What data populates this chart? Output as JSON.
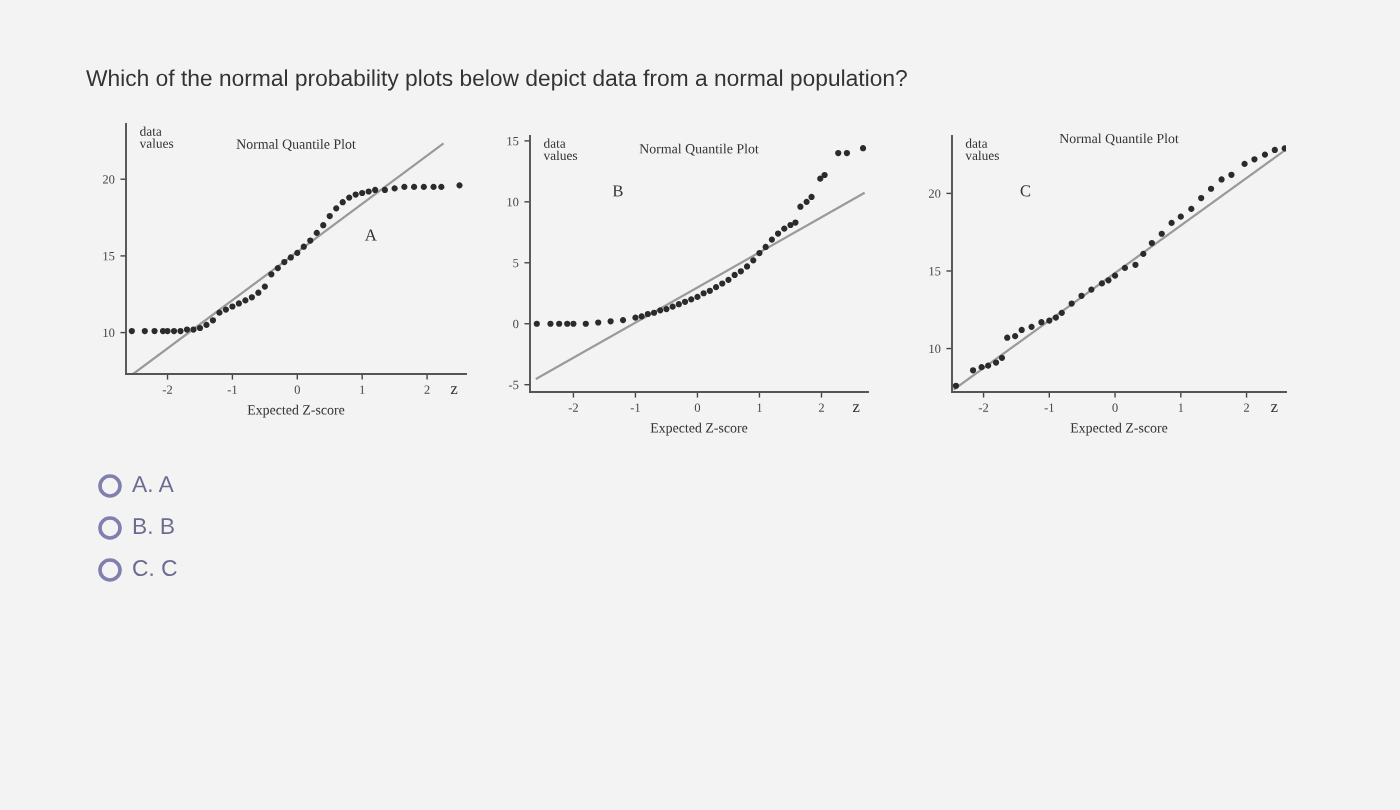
{
  "chart_data": [
    {
      "type": "other",
      "title": "Which of the normal probability plots below depict data from a normal population?"
    },
    {
      "type": "scatter",
      "title": "Normal Quantile Plot",
      "xlabel": "Expected Z-score",
      "ylabel": "data values",
      "annotations": [
        "A",
        "z"
      ],
      "xlim": [
        -2.64,
        2.6
      ],
      "ylim": [
        7.3,
        23.6
      ],
      "xticks": [
        -2,
        -1,
        0,
        1,
        2
      ],
      "yticks": [
        10,
        15,
        20
      ],
      "series": [
        {
          "type": "scatter",
          "marker": "circle",
          "color": "#2b2b2b",
          "x": [
            -2.55,
            -2.35,
            -2.2,
            -2.07,
            -2.0,
            -1.9,
            -1.8,
            -1.7,
            -1.6,
            -1.5,
            -1.4,
            -1.3,
            -1.2,
            -1.1,
            -1.0,
            -0.9,
            -0.8,
            -0.7,
            -0.6,
            -0.5,
            -0.4,
            -0.3,
            -0.2,
            -0.1,
            0.0,
            0.1,
            0.2,
            0.3,
            0.4,
            0.5,
            0.6,
            0.7,
            0.8,
            0.9,
            1.0,
            1.1,
            1.2,
            1.35,
            1.5,
            1.65,
            1.8,
            1.95,
            2.1,
            2.22,
            2.5
          ],
          "values": [
            10.1,
            10.1,
            10.1,
            10.1,
            10.1,
            10.1,
            10.1,
            10.2,
            10.2,
            10.3,
            10.5,
            10.8,
            11.3,
            11.5,
            11.7,
            11.9,
            12.1,
            12.3,
            12.6,
            13.0,
            13.8,
            14.2,
            14.6,
            14.9,
            15.2,
            15.6,
            16.0,
            16.5,
            17.0,
            17.6,
            18.1,
            18.5,
            18.8,
            19.0,
            19.1,
            19.2,
            19.3,
            19.3,
            19.4,
            19.5,
            19.5,
            19.5,
            19.5,
            19.5,
            19.6
          ]
        },
        {
          "type": "line",
          "color": "#9a9a9a",
          "x": [
            -2.53,
            2.24
          ],
          "values": [
            7.3,
            22.3
          ]
        }
      ]
    },
    {
      "type": "scatter",
      "title": "Normal Quantile Plot",
      "xlabel": "Expected Z-score",
      "ylabel": "data values",
      "annotations": [
        "B",
        "z"
      ],
      "xlim": [
        -2.7,
        2.75
      ],
      "ylim": [
        -5.6,
        15.4
      ],
      "xticks": [
        -2,
        -1,
        0,
        1,
        2
      ],
      "yticks": [
        -5,
        0,
        5,
        10,
        15
      ],
      "series": [
        {
          "type": "scatter",
          "marker": "circle",
          "color": "#2b2b2b",
          "x": [
            -2.59,
            -2.37,
            -2.23,
            -2.1,
            -2.0,
            -1.8,
            -1.6,
            -1.4,
            -1.2,
            -1.0,
            -0.9,
            -0.8,
            -0.7,
            -0.6,
            -0.5,
            -0.4,
            -0.3,
            -0.2,
            -0.1,
            0.0,
            0.1,
            0.2,
            0.3,
            0.4,
            0.5,
            0.6,
            0.7,
            0.8,
            0.9,
            1.0,
            1.1,
            1.2,
            1.3,
            1.4,
            1.5,
            1.58,
            1.66,
            1.76,
            1.84,
            1.98,
            2.05,
            2.27,
            2.41,
            2.67
          ],
          "values": [
            0.0,
            0.0,
            0.0,
            0.0,
            0.0,
            0.0,
            0.1,
            0.2,
            0.3,
            0.5,
            0.6,
            0.8,
            0.9,
            1.1,
            1.2,
            1.4,
            1.6,
            1.8,
            2.0,
            2.2,
            2.5,
            2.7,
            3.0,
            3.3,
            3.6,
            4.0,
            4.3,
            4.7,
            5.2,
            5.8,
            6.3,
            6.9,
            7.4,
            7.8,
            8.1,
            8.3,
            9.6,
            10.0,
            10.4,
            11.9,
            12.2,
            14.0,
            14.0,
            14.4
          ]
        },
        {
          "type": "line",
          "color": "#9a9a9a",
          "x": [
            -2.59,
            2.68
          ],
          "values": [
            -4.5,
            10.7
          ]
        }
      ]
    },
    {
      "type": "scatter",
      "title": "Normal Quantile Plot",
      "xlabel": "Expected Z-score",
      "ylabel": "data values",
      "annotations": [
        "C",
        "z"
      ],
      "xlim": [
        -2.48,
        2.6
      ],
      "ylim": [
        7.2,
        23.7
      ],
      "xticks": [
        -2,
        -1,
        0,
        1,
        2
      ],
      "yticks": [
        10,
        15,
        20
      ],
      "series": [
        {
          "type": "scatter",
          "marker": "circle",
          "color": "#2b2b2b",
          "x": [
            -2.42,
            -2.16,
            -2.03,
            -1.93,
            -1.81,
            -1.72,
            -1.64,
            -1.52,
            -1.42,
            -1.27,
            -1.12,
            -1.0,
            -0.9,
            -0.81,
            -0.66,
            -0.51,
            -0.36,
            -0.2,
            -0.1,
            0.0,
            0.15,
            0.31,
            0.43,
            0.56,
            0.71,
            0.86,
            1.0,
            1.16,
            1.31,
            1.46,
            1.62,
            1.77,
            1.97,
            2.12,
            2.28,
            2.43,
            2.58
          ],
          "values": [
            7.6,
            8.6,
            8.8,
            8.9,
            9.1,
            9.4,
            10.7,
            10.8,
            11.2,
            11.4,
            11.7,
            11.8,
            12.0,
            12.3,
            12.9,
            13.4,
            13.8,
            14.2,
            14.4,
            14.7,
            15.2,
            15.4,
            16.1,
            16.8,
            17.4,
            18.1,
            18.5,
            19.0,
            19.7,
            20.3,
            20.9,
            21.2,
            21.9,
            22.2,
            22.5,
            22.8,
            22.9
          ]
        },
        {
          "type": "line",
          "color": "#9a9a9a",
          "x": [
            -2.44,
            2.59
          ],
          "values": [
            7.4,
            22.8
          ]
        }
      ]
    },
    {
      "type": "other",
      "annotations": [
        "A. A",
        "B. B",
        "C. C"
      ]
    }
  ]
}
